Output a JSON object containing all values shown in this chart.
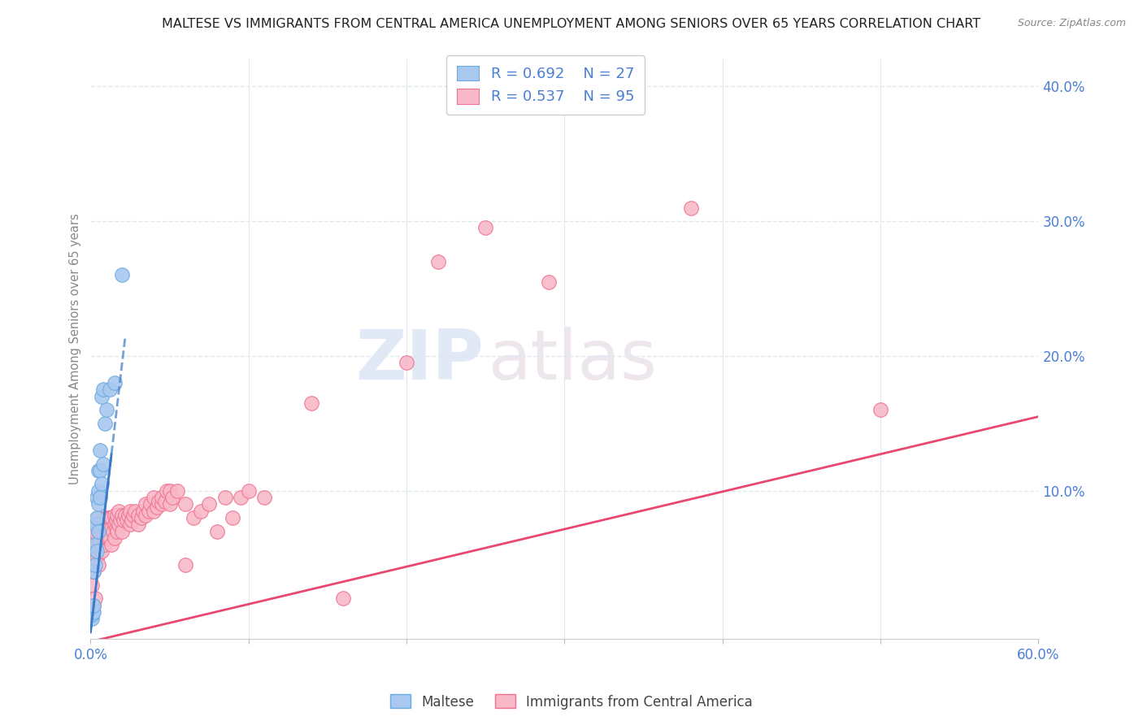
{
  "title": "MALTESE VS IMMIGRANTS FROM CENTRAL AMERICA UNEMPLOYMENT AMONG SENIORS OVER 65 YEARS CORRELATION CHART",
  "source": "Source: ZipAtlas.com",
  "ylabel": "Unemployment Among Seniors over 65 years",
  "watermark_zip": "ZIP",
  "watermark_atlas": "atlas",
  "xlim": [
    0.0,
    0.6
  ],
  "ylim": [
    -0.01,
    0.42
  ],
  "xticks": [
    0.0,
    0.1,
    0.2,
    0.3,
    0.4,
    0.5,
    0.6
  ],
  "xticklabels": [
    "0.0%",
    "",
    "",
    "",
    "",
    "",
    "60.0%"
  ],
  "yticks_right": [
    0.1,
    0.2,
    0.3,
    0.4
  ],
  "ytick_right_labels": [
    "10.0%",
    "20.0%",
    "30.0%",
    "40.0%"
  ],
  "legend_R1": "R = 0.692",
  "legend_N1": "N = 27",
  "legend_R2": "R = 0.537",
  "legend_N2": "N = 95",
  "legend_label1": "Maltese",
  "legend_label2": "Immigrants from Central America",
  "blue_scatter_color": "#a8c8f0",
  "blue_edge_color": "#6aaae0",
  "pink_scatter_color": "#f8b8c8",
  "pink_edge_color": "#f07090",
  "trend_blue_color": "#3a7ac8",
  "trend_pink_color": "#e84870",
  "axis_label_color": "#4a7fd4",
  "grid_color": "#e0e8f0",
  "maltese_x": [
    0.001,
    0.001,
    0.002,
    0.002,
    0.002,
    0.003,
    0.003,
    0.003,
    0.004,
    0.004,
    0.004,
    0.005,
    0.005,
    0.005,
    0.005,
    0.006,
    0.006,
    0.006,
    0.007,
    0.007,
    0.008,
    0.008,
    0.009,
    0.01,
    0.012,
    0.015,
    0.02
  ],
  "maltese_y": [
    0.005,
    0.008,
    0.01,
    0.015,
    0.04,
    0.045,
    0.06,
    0.075,
    0.055,
    0.08,
    0.095,
    0.07,
    0.09,
    0.1,
    0.115,
    0.095,
    0.115,
    0.13,
    0.105,
    0.17,
    0.12,
    0.175,
    0.15,
    0.16,
    0.175,
    0.18,
    0.26
  ],
  "blue_trend_x0": 0.0,
  "blue_trend_y0": -0.005,
  "blue_trend_x1": 0.022,
  "blue_trend_y1": 0.215,
  "pink_trend_x0": 0.0,
  "pink_trend_y0": -0.012,
  "pink_trend_x1": 0.6,
  "pink_trend_y1": 0.155,
  "central_america_x": [
    0.001,
    0.001,
    0.002,
    0.002,
    0.002,
    0.003,
    0.003,
    0.003,
    0.004,
    0.004,
    0.004,
    0.005,
    0.005,
    0.005,
    0.005,
    0.006,
    0.006,
    0.006,
    0.007,
    0.007,
    0.008,
    0.008,
    0.009,
    0.009,
    0.01,
    0.01,
    0.01,
    0.011,
    0.011,
    0.012,
    0.012,
    0.013,
    0.013,
    0.013,
    0.014,
    0.015,
    0.015,
    0.015,
    0.016,
    0.016,
    0.017,
    0.017,
    0.018,
    0.018,
    0.019,
    0.02,
    0.02,
    0.021,
    0.022,
    0.023,
    0.024,
    0.025,
    0.025,
    0.026,
    0.027,
    0.028,
    0.03,
    0.03,
    0.032,
    0.033,
    0.035,
    0.035,
    0.037,
    0.038,
    0.04,
    0.04,
    0.042,
    0.043,
    0.045,
    0.045,
    0.047,
    0.048,
    0.05,
    0.05,
    0.052,
    0.055,
    0.06,
    0.06,
    0.065,
    0.07,
    0.075,
    0.08,
    0.085,
    0.09,
    0.095,
    0.1,
    0.11,
    0.14,
    0.16,
    0.2,
    0.22,
    0.25,
    0.29,
    0.38,
    0.5
  ],
  "central_america_y": [
    0.03,
    0.055,
    0.015,
    0.04,
    0.065,
    0.02,
    0.055,
    0.07,
    0.05,
    0.06,
    0.075,
    0.045,
    0.06,
    0.07,
    0.08,
    0.06,
    0.07,
    0.075,
    0.055,
    0.07,
    0.06,
    0.075,
    0.06,
    0.075,
    0.065,
    0.07,
    0.08,
    0.065,
    0.075,
    0.065,
    0.08,
    0.06,
    0.072,
    0.08,
    0.07,
    0.065,
    0.075,
    0.082,
    0.072,
    0.078,
    0.07,
    0.082,
    0.075,
    0.085,
    0.078,
    0.07,
    0.082,
    0.078,
    0.082,
    0.078,
    0.082,
    0.075,
    0.085,
    0.078,
    0.082,
    0.085,
    0.075,
    0.082,
    0.08,
    0.085,
    0.082,
    0.09,
    0.085,
    0.09,
    0.085,
    0.095,
    0.088,
    0.092,
    0.09,
    0.095,
    0.092,
    0.1,
    0.09,
    0.1,
    0.095,
    0.1,
    0.09,
    0.045,
    0.08,
    0.085,
    0.09,
    0.07,
    0.095,
    0.08,
    0.095,
    0.1,
    0.095,
    0.165,
    0.02,
    0.195,
    0.27,
    0.295,
    0.255,
    0.31,
    0.16
  ]
}
